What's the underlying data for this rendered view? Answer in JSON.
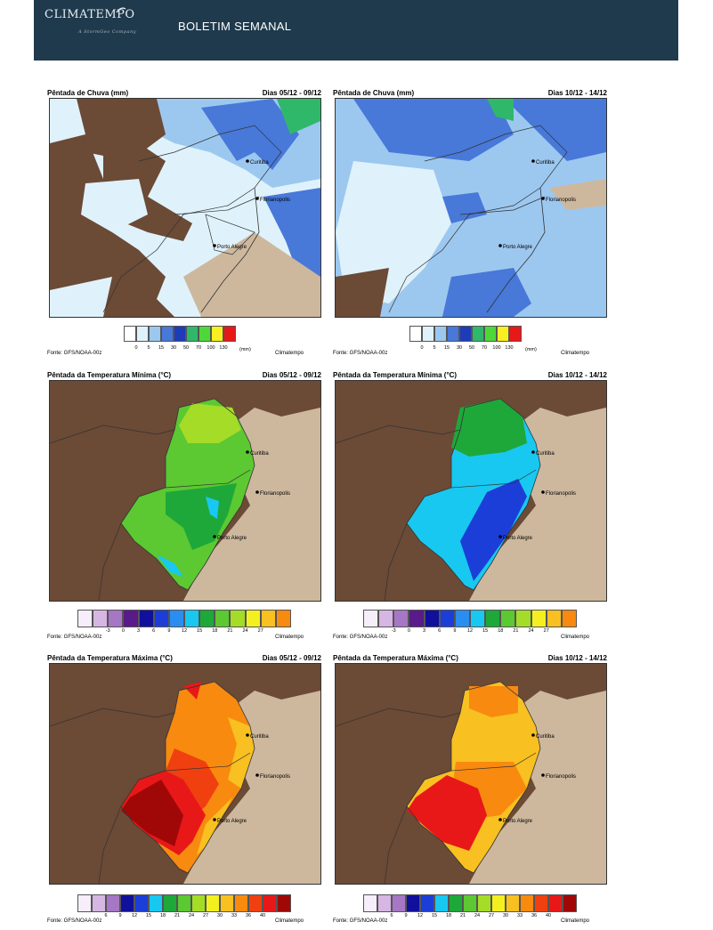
{
  "header": {
    "logo_text": "CLIMATEMPO",
    "logo_subtext": "A StormGeo Company",
    "title": "BOLETIM SEMANAL"
  },
  "cities": [
    "Curitiba",
    "Florianopolis",
    "Porto Alegre"
  ],
  "panels": {
    "rain_a": {
      "title": "Pêntada de Chuva (mm)",
      "dates": "Dias 05/12 - 09/12"
    },
    "rain_b": {
      "title": "Pêntada de Chuva (mm)",
      "dates": "Dias 10/12 - 14/12"
    },
    "tmin_a": {
      "title": "Pêntada da Temperatura Mínima (°C)",
      "dates": "Dias 05/12 - 09/12"
    },
    "tmin_b": {
      "title": "Pêntada da Temperatura Mínima (°C)",
      "dates": "Dias 10/12 - 14/12"
    },
    "tmax_a": {
      "title": "Pêntada da Temperatura Máxima (°C)",
      "dates": "Dias 05/12 - 09/12"
    },
    "tmax_b": {
      "title": "Pêntada da Temperatura Máxima (°C)",
      "dates": "Dias 10/12 - 14/12"
    }
  },
  "source": "Fonte: GFS/NOAA-00z",
  "credit": "Climatempo",
  "legends": {
    "rain": {
      "ticks": [
        "0",
        "5",
        "15",
        "30",
        "50",
        "70",
        "100",
        "130"
      ],
      "unit": "(mm)",
      "colors": [
        "#ffffff",
        "#dff2fb",
        "#9cc8f0",
        "#4878d8",
        "#1f3cb8",
        "#2fb86a",
        "#4ed838",
        "#f8f020",
        "#e81818"
      ]
    },
    "tmin": {
      "ticks": [
        "-3",
        "0",
        "3",
        "6",
        "9",
        "12",
        "15",
        "18",
        "21",
        "24",
        "27"
      ],
      "colors": [
        "#f6eefa",
        "#d6b6e2",
        "#a577c4",
        "#5a1a8a",
        "#10109c",
        "#1c3ed8",
        "#2a8ef0",
        "#18c8f0",
        "#1ea83a",
        "#5cc832",
        "#a4dc28",
        "#f4f020",
        "#f8c020",
        "#f88a10"
      ]
    },
    "tmax": {
      "ticks": [
        "6",
        "9",
        "12",
        "15",
        "18",
        "21",
        "24",
        "27",
        "30",
        "33",
        "36",
        "40"
      ],
      "colors": [
        "#f6eefa",
        "#d6b6e2",
        "#a577c4",
        "#10109c",
        "#1c3ed8",
        "#18c8f0",
        "#1ea83a",
        "#5cc832",
        "#a4dc28",
        "#f4f020",
        "#f8c020",
        "#f88a10",
        "#f04010",
        "#e81818",
        "#a00808"
      ]
    }
  }
}
